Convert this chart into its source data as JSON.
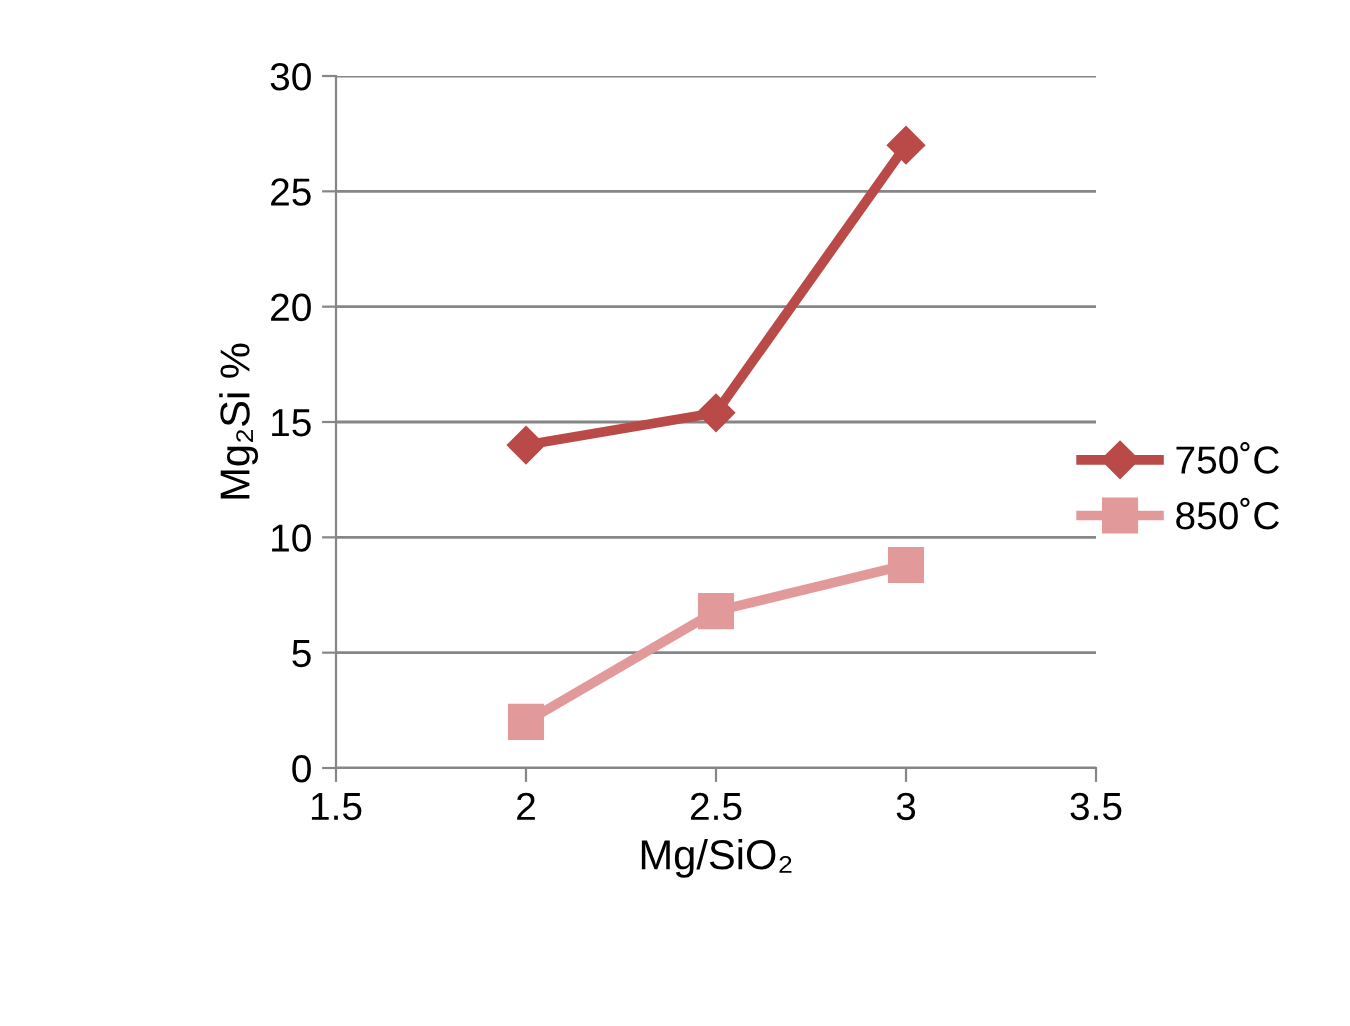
{
  "chart_data": {
    "type": "line",
    "xlabel": "Mg/SiO₂",
    "ylabel": "Mg₂Si %",
    "xlim": [
      1.5,
      3.5
    ],
    "xticks": [
      1.5,
      2,
      2.5,
      3,
      3.5
    ],
    "ylim": [
      0,
      30
    ],
    "yticks": [
      0,
      5,
      10,
      15,
      20,
      25,
      30
    ],
    "grid": "y",
    "legend": "right",
    "line_style": "solid",
    "series": [
      {
        "name": "750˚C",
        "color": "#b94a48",
        "marker": "diamond",
        "x": [
          2,
          2.5,
          3
        ],
        "values": [
          14,
          15.4,
          27
        ]
      },
      {
        "name": "850˚C",
        "color": "#e2999a",
        "marker": "square",
        "x": [
          2,
          2.5,
          3
        ],
        "values": [
          2,
          6.8,
          8.8
        ]
      }
    ]
  }
}
